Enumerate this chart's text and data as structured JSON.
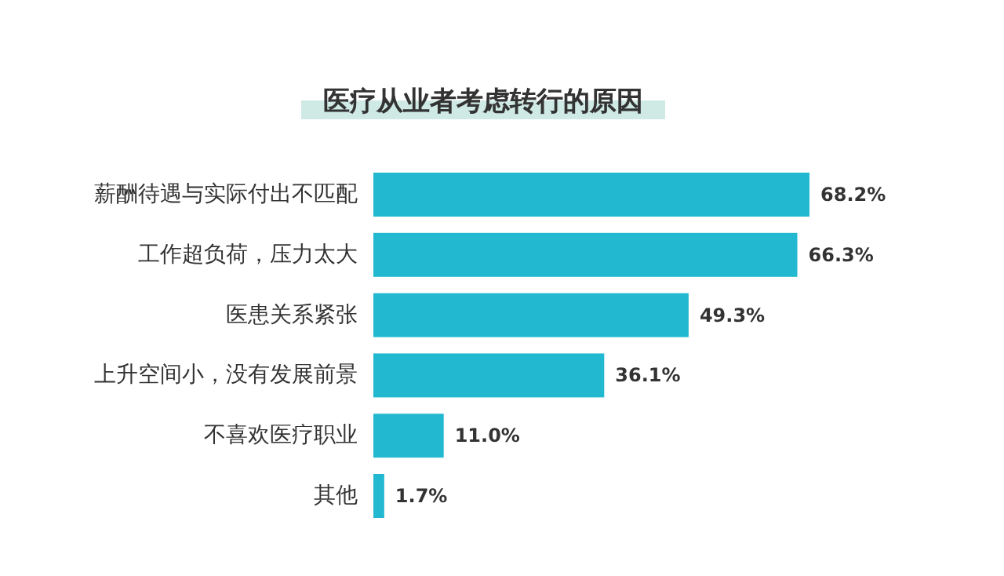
{
  "chart_data": {
    "type": "bar",
    "orientation": "horizontal",
    "title": "医疗从业者考虑转行的原因",
    "categories": [
      "薪酬待遇与实际付出不匹配",
      "工作超负荷，压力太大",
      "医患关系紧张",
      "上升空间小，没有发展前景",
      "不喜欢医疗职业",
      "其他"
    ],
    "values": [
      68.2,
      66.3,
      49.3,
      36.1,
      11.0,
      1.7
    ],
    "value_labels": [
      "68.2%",
      "66.3%",
      "49.3%",
      "36.1%",
      "11.0%",
      "1.7%"
    ],
    "color": "#22b9d0"
  }
}
